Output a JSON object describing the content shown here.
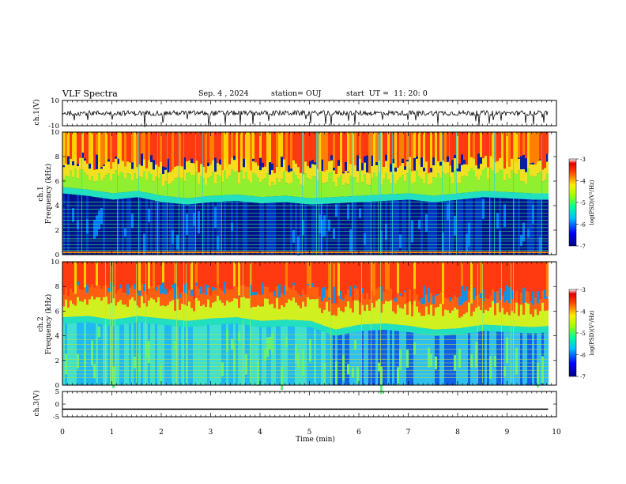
{
  "header": {
    "title": "VLF Spectra",
    "date": "Sep. 4 , 2024",
    "station": "station= OUJ",
    "start": "start  UT =  11: 20: 0"
  },
  "chart_data": [
    {
      "type": "line",
      "panel": "ch1-waveform",
      "ylabel": "ch.1(V)",
      "ylim": [
        -10,
        10
      ],
      "yticks": [
        "10",
        "-10"
      ],
      "x": [
        0,
        1,
        2,
        3,
        4,
        5,
        6,
        7,
        8,
        9,
        9.83
      ],
      "values": [
        0,
        0,
        0,
        0,
        0,
        0,
        0,
        0,
        0,
        0,
        0
      ],
      "color": "#000000"
    },
    {
      "type": "heatmap",
      "panel": "ch1-spectrogram",
      "ylabel": "ch.1 Frequency (kHz)",
      "ylim": [
        0,
        10
      ],
      "yticks": [
        "0",
        "2",
        "4",
        "6",
        "8",
        "10"
      ],
      "xlim": [
        0,
        9.83
      ],
      "boundary_khz_by_minute": {
        "x": [
          0,
          0.5,
          1,
          1.5,
          2,
          2.5,
          3,
          3.5,
          4,
          4.5,
          5,
          5.5,
          6,
          6.5,
          7,
          7.5,
          8,
          8.5,
          9,
          9.5,
          9.83
        ],
        "kHz": [
          5.5,
          5.3,
          5.0,
          5.2,
          4.8,
          4.6,
          4.8,
          4.9,
          4.7,
          4.8,
          4.6,
          4.7,
          4.8,
          4.9,
          5.0,
          4.8,
          5.0,
          5.2,
          5.1,
          5.0,
          5.0
        ]
      },
      "colorbar": {
        "label": "log(PSD)(V²/Hz)",
        "range": [
          -7,
          -3
        ],
        "ticks": [
          "-3",
          "-4",
          "-5",
          "-6",
          "-7"
        ]
      }
    },
    {
      "type": "heatmap",
      "panel": "ch2-spectrogram",
      "ylabel": "ch.2 Frequency (kHz)",
      "ylim": [
        0,
        10
      ],
      "yticks": [
        "0",
        "2",
        "4",
        "6",
        "8",
        "10"
      ],
      "xlim": [
        0,
        9.83
      ],
      "boundary_khz_by_minute": {
        "x": [
          0,
          0.5,
          1,
          1.5,
          2,
          2.5,
          3,
          3.5,
          4,
          4.5,
          5,
          5.5,
          6,
          6.5,
          7,
          7.5,
          8,
          8.5,
          9,
          9.5,
          9.83
        ],
        "kHz": [
          5.5,
          5.6,
          5.3,
          5.6,
          5.4,
          5.2,
          5.4,
          5.5,
          5.2,
          5.3,
          5.2,
          4.5,
          4.9,
          5.0,
          4.8,
          4.5,
          4.6,
          4.9,
          4.8,
          4.7,
          4.8
        ]
      },
      "colorbar": {
        "label": "log(PSD)(V²/Hz)",
        "range": [
          -7,
          -3
        ],
        "ticks": [
          "-3",
          "-4",
          "-5",
          "-6",
          "-7"
        ]
      }
    },
    {
      "type": "line",
      "panel": "ch3-waveform",
      "ylabel": "ch.3(V)",
      "ylim": [
        -5,
        5
      ],
      "yticks": [
        "5",
        "0",
        "-5"
      ],
      "x": [
        0,
        9.83
      ],
      "values": [
        -2,
        -2
      ],
      "color": "#000000"
    }
  ],
  "xaxis": {
    "label": "Time (min)",
    "range": [
      0,
      10
    ],
    "ticks": [
      "0",
      "1",
      "2",
      "3",
      "4",
      "5",
      "6",
      "7",
      "8",
      "9",
      "10"
    ]
  }
}
